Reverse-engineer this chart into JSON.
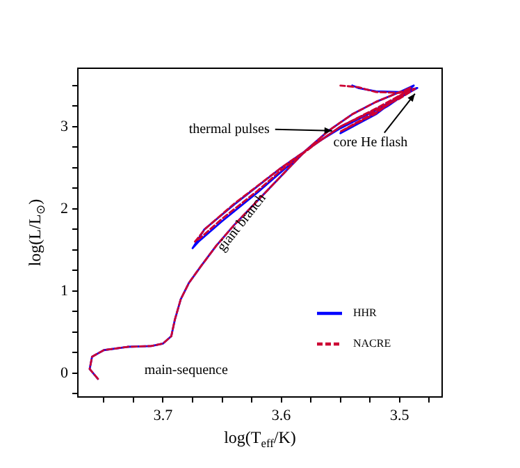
{
  "chart_data": {
    "type": "line",
    "xlabel": "log(T$_{eff}$/K)",
    "ylabel": "log(L/L$_{⊙}$)",
    "xlim": [
      3.772,
      3.464
    ],
    "ylim": [
      -0.29,
      3.71
    ],
    "xticks": [
      {
        "value": 3.75,
        "label": null
      },
      {
        "value": 3.725,
        "label": null
      },
      3.7,
      {
        "value": 3.675,
        "label": null
      },
      {
        "value": 3.65,
        "label": null
      },
      {
        "value": 3.625,
        "label": null
      },
      3.6,
      {
        "value": 3.575,
        "label": null
      },
      {
        "value": 3.55,
        "label": null
      },
      {
        "value": 3.525,
        "label": null
      },
      3.5,
      {
        "value": 3.475,
        "label": null
      }
    ],
    "yticks": [
      {
        "value": -0.25,
        "label": null
      },
      0,
      {
        "value": 0.25,
        "label": null
      },
      {
        "value": 0.5,
        "label": null
      },
      {
        "value": 0.75,
        "label": null
      },
      1,
      {
        "value": 1.25,
        "label": null
      },
      {
        "value": 1.5,
        "label": null
      },
      {
        "value": 1.75,
        "label": null
      },
      2,
      {
        "value": 2.25,
        "label": null
      },
      {
        "value": 2.5,
        "label": null
      },
      {
        "value": 2.75,
        "label": null
      },
      3,
      {
        "value": 3.25,
        "label": null
      },
      {
        "value": 3.5,
        "label": null
      }
    ],
    "grid": false,
    "legend": "bottom right",
    "marker": "none",
    "series": [
      {
        "name": "HHR",
        "color": "#0000ff",
        "line_style": "solid",
        "x": [
          3.755,
          3.762,
          3.76,
          3.75,
          3.73,
          3.71,
          3.7,
          3.693,
          3.69,
          3.685,
          3.678,
          3.668,
          3.655,
          3.64,
          3.62,
          3.6,
          3.58,
          3.56,
          3.54,
          3.52,
          3.5,
          3.485,
          3.5,
          3.55,
          3.6,
          3.64,
          3.665,
          3.675,
          3.67,
          3.65,
          3.62,
          3.6,
          3.575,
          3.55,
          3.52,
          3.49,
          3.51,
          3.55,
          3.52,
          3.488,
          3.5,
          3.52,
          3.535,
          3.54
        ],
        "values": [
          -0.07,
          0.05,
          0.2,
          0.28,
          0.32,
          0.33,
          0.36,
          0.45,
          0.65,
          0.9,
          1.1,
          1.3,
          1.55,
          1.8,
          2.1,
          2.4,
          2.7,
          2.95,
          3.15,
          3.3,
          3.42,
          3.47,
          3.35,
          3.0,
          2.5,
          2.05,
          1.75,
          1.52,
          1.6,
          1.85,
          2.2,
          2.45,
          2.76,
          2.98,
          3.2,
          3.45,
          3.25,
          2.92,
          3.15,
          3.5,
          3.42,
          3.43,
          3.47,
          3.5
        ]
      },
      {
        "name": "NACRE",
        "color": "#cc0033",
        "line_style": "dashed",
        "x": [
          3.755,
          3.762,
          3.76,
          3.75,
          3.73,
          3.71,
          3.7,
          3.693,
          3.69,
          3.685,
          3.678,
          3.668,
          3.655,
          3.64,
          3.62,
          3.6,
          3.58,
          3.56,
          3.54,
          3.52,
          3.5,
          3.487,
          3.5,
          3.55,
          3.6,
          3.64,
          3.664,
          3.673,
          3.668,
          3.65,
          3.62,
          3.6,
          3.57,
          3.55,
          3.52,
          3.492,
          3.51,
          3.55,
          3.52,
          3.49,
          3.5,
          3.52,
          3.535,
          3.55
        ],
        "values": [
          -0.07,
          0.05,
          0.2,
          0.28,
          0.32,
          0.33,
          0.36,
          0.45,
          0.65,
          0.9,
          1.1,
          1.3,
          1.55,
          1.8,
          2.1,
          2.4,
          2.7,
          2.95,
          3.15,
          3.3,
          3.42,
          3.46,
          3.34,
          3.0,
          2.5,
          2.06,
          1.76,
          1.6,
          1.65,
          1.88,
          2.22,
          2.47,
          2.8,
          3.0,
          3.22,
          3.44,
          3.26,
          2.94,
          3.16,
          3.48,
          3.41,
          3.42,
          3.48,
          3.5
        ]
      }
    ],
    "annotations": [
      {
        "text": "thermal pulses",
        "x": 3.557,
        "y": 2.95
      },
      {
        "text": "core He flash",
        "x": 3.487,
        "y": 3.4
      },
      "giant branch",
      "main-sequence"
    ]
  }
}
